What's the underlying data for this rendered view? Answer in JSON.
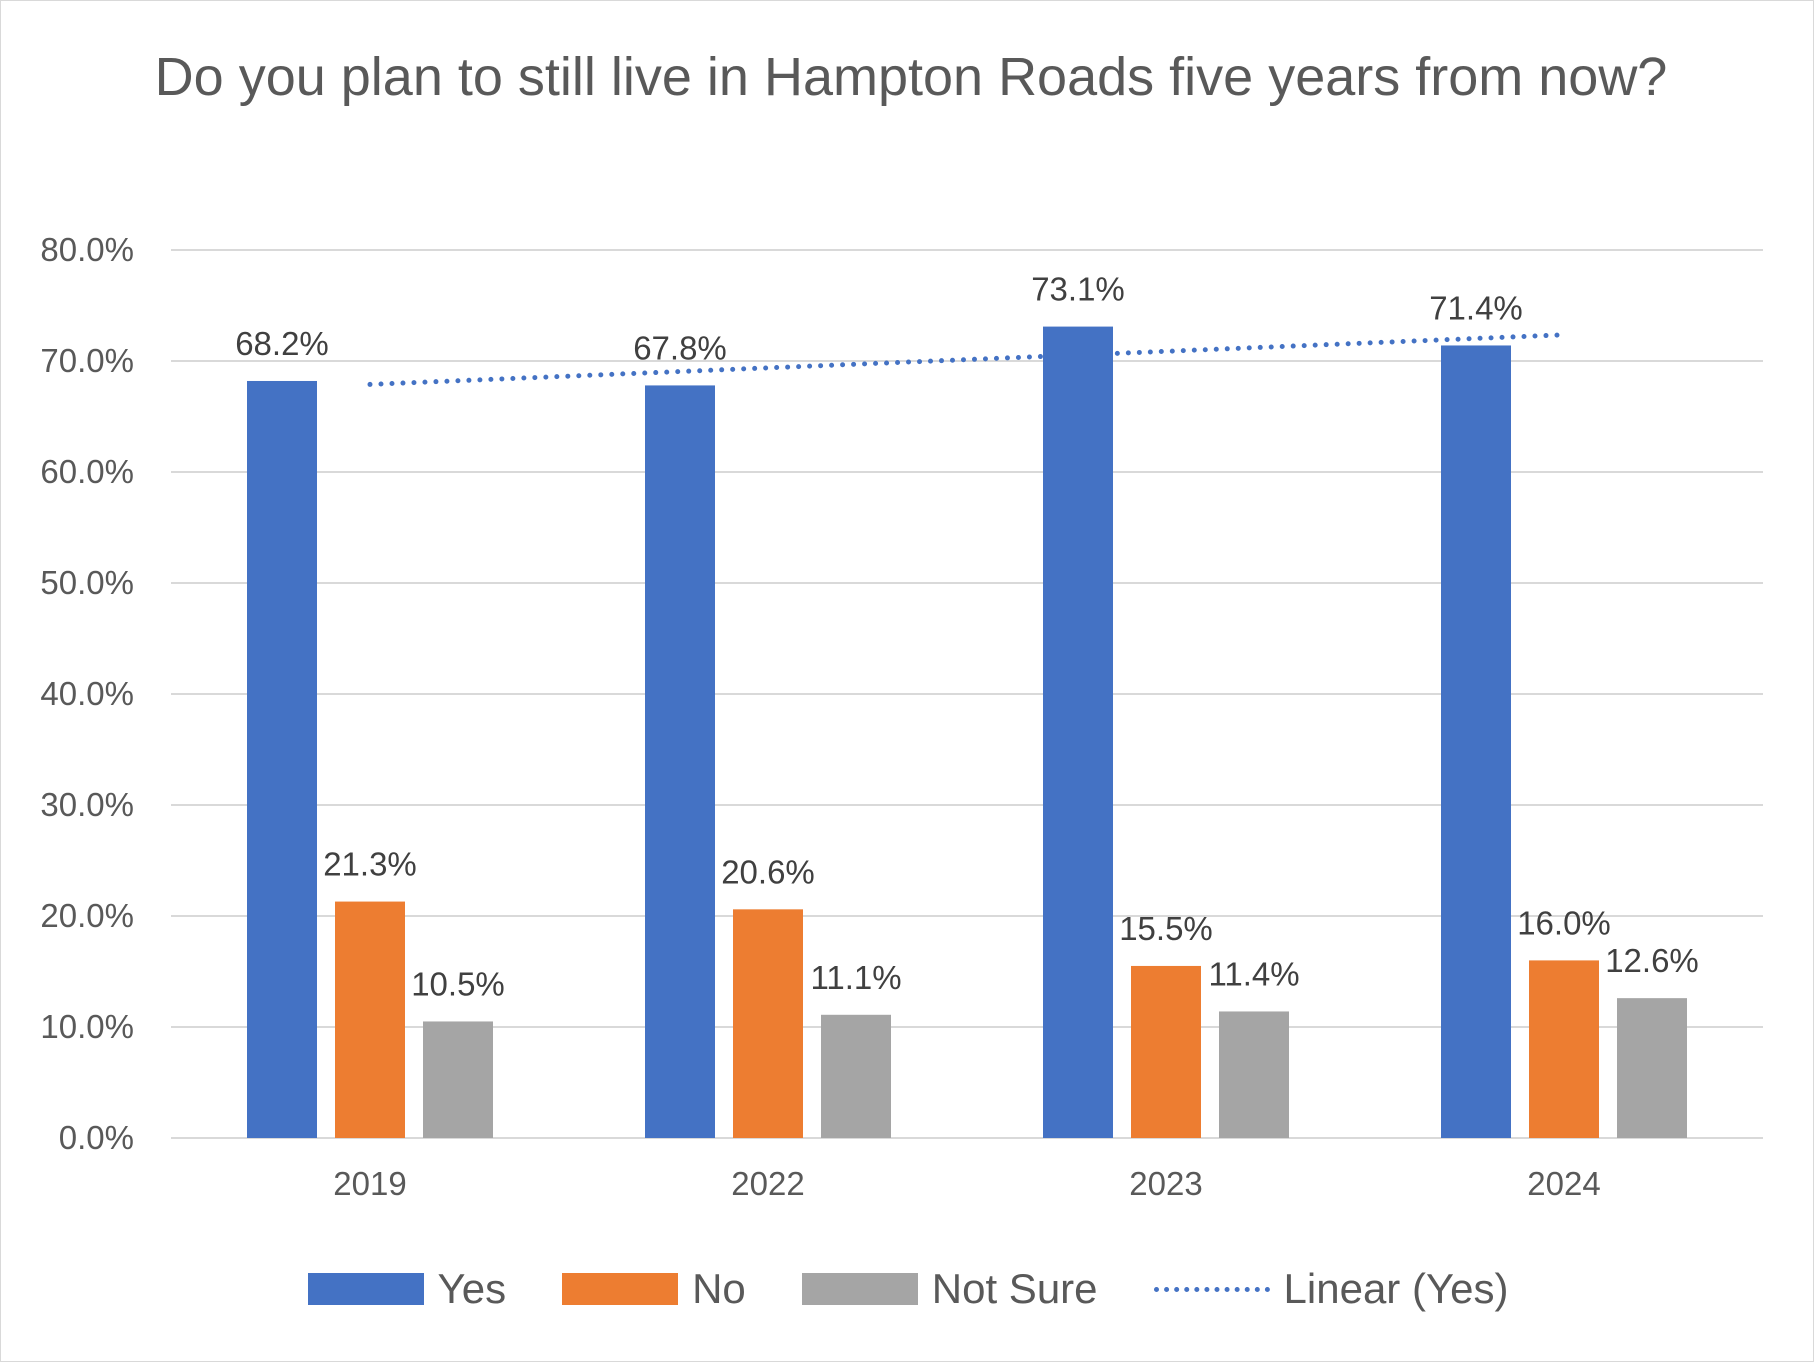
{
  "chart_data": {
    "type": "bar",
    "title": "Do you plan to still live in Hampton Roads five years from now?",
    "categories": [
      "2019",
      "2022",
      "2023",
      "2024"
    ],
    "series": [
      {
        "name": "Yes",
        "values": [
          68.2,
          67.8,
          73.1,
          71.4
        ],
        "labels": [
          "68.2%",
          "67.8%",
          "73.1%",
          "71.4%"
        ],
        "color": "#4472c4"
      },
      {
        "name": "No",
        "values": [
          21.3,
          20.6,
          15.5,
          16.0
        ],
        "labels": [
          "21.3%",
          "20.6%",
          "15.5%",
          "16.0%"
        ],
        "color": "#ed7d31"
      },
      {
        "name": "Not Sure",
        "values": [
          10.5,
          11.1,
          11.4,
          12.6
        ],
        "labels": [
          "10.5%",
          "11.1%",
          "11.4%",
          "12.6%"
        ],
        "color": "#a5a5a5"
      }
    ],
    "trendline": {
      "name": "Linear (Yes)",
      "series": "Yes",
      "kind": "linear",
      "style": "dotted",
      "color": "#4472c4"
    },
    "ylim": [
      0,
      80
    ],
    "yticks": [
      "0.0%",
      "10.0%",
      "20.0%",
      "30.0%",
      "40.0%",
      "50.0%",
      "60.0%",
      "70.0%",
      "80.0%"
    ],
    "grid": true,
    "legend": "bottom"
  }
}
